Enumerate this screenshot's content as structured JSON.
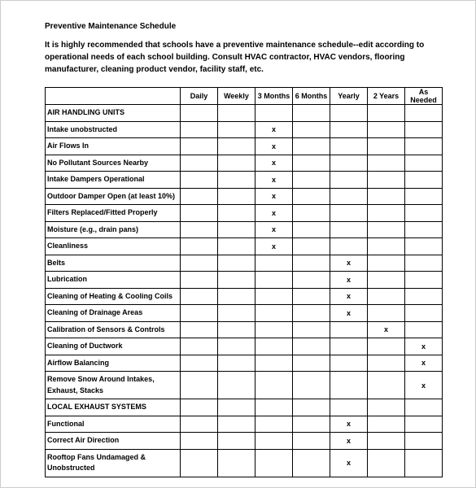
{
  "title": "Preventive Maintenance Schedule",
  "intro": "It is highly recommended that schools have a preventive maintenance schedule--edit according to operational needs of each school building. Consult HVAC contractor, HVAC vendors, flooring manufacturer, cleaning product vendor, facility staff, etc.",
  "columns": [
    "Daily",
    "Weekly",
    "3 Months",
    "6 Months",
    "Yearly",
    "2 Years",
    "As Needed"
  ],
  "mark_char": "x",
  "rows": [
    {
      "type": "section",
      "label": "AIR HANDLING UNITS"
    },
    {
      "type": "item",
      "label": "Intake unobstructed",
      "marks": [
        0,
        0,
        1,
        0,
        0,
        0,
        0
      ]
    },
    {
      "type": "item",
      "label": "Air Flows In",
      "marks": [
        0,
        0,
        1,
        0,
        0,
        0,
        0
      ]
    },
    {
      "type": "item",
      "label": "No Pollutant Sources Nearby",
      "marks": [
        0,
        0,
        1,
        0,
        0,
        0,
        0
      ]
    },
    {
      "type": "item",
      "label": "Intake Dampers Operational",
      "marks": [
        0,
        0,
        1,
        0,
        0,
        0,
        0
      ]
    },
    {
      "type": "item",
      "label": "Outdoor Damper Open (at least 10%)",
      "marks": [
        0,
        0,
        1,
        0,
        0,
        0,
        0
      ]
    },
    {
      "type": "item",
      "label": "Filters Replaced/Fitted Properly",
      "marks": [
        0,
        0,
        1,
        0,
        0,
        0,
        0
      ]
    },
    {
      "type": "item",
      "label": "Moisture (e.g., drain pans)",
      "marks": [
        0,
        0,
        1,
        0,
        0,
        0,
        0
      ]
    },
    {
      "type": "item",
      "label": "Cleanliness",
      "marks": [
        0,
        0,
        1,
        0,
        0,
        0,
        0
      ]
    },
    {
      "type": "item",
      "label": "Belts",
      "marks": [
        0,
        0,
        0,
        0,
        1,
        0,
        0
      ]
    },
    {
      "type": "item",
      "label": "Lubrication",
      "marks": [
        0,
        0,
        0,
        0,
        1,
        0,
        0
      ]
    },
    {
      "type": "item",
      "label": "Cleaning of Heating & Cooling Coils",
      "marks": [
        0,
        0,
        0,
        0,
        1,
        0,
        0
      ]
    },
    {
      "type": "item",
      "label": "Cleaning of Drainage Areas",
      "marks": [
        0,
        0,
        0,
        0,
        1,
        0,
        0
      ]
    },
    {
      "type": "item",
      "label": "Calibration of Sensors & Controls",
      "marks": [
        0,
        0,
        0,
        0,
        0,
        1,
        0
      ]
    },
    {
      "type": "item",
      "label": "Cleaning of Ductwork",
      "marks": [
        0,
        0,
        0,
        0,
        0,
        0,
        1
      ]
    },
    {
      "type": "item",
      "label": "Airflow Balancing",
      "marks": [
        0,
        0,
        0,
        0,
        0,
        0,
        1
      ]
    },
    {
      "type": "item",
      "label": "Remove Snow Around Intakes, Exhaust, Stacks",
      "marks": [
        0,
        0,
        0,
        0,
        0,
        0,
        1
      ],
      "tall": true
    },
    {
      "type": "section",
      "label": "LOCAL EXHAUST SYSTEMS"
    },
    {
      "type": "item",
      "label": "Functional",
      "marks": [
        0,
        0,
        0,
        0,
        1,
        0,
        0
      ]
    },
    {
      "type": "item",
      "label": "Correct Air Direction",
      "marks": [
        0,
        0,
        0,
        0,
        1,
        0,
        0
      ]
    },
    {
      "type": "item",
      "label": "Rooftop Fans Undamaged & Unobstructed",
      "marks": [
        0,
        0,
        0,
        0,
        1,
        0,
        0
      ],
      "tall": true
    }
  ],
  "style": {
    "border_color": "#000000",
    "page_border_color": "#cccccc",
    "background_color": "#ffffff",
    "text_color": "#000000",
    "title_fontsize": 10,
    "body_fontsize": 10,
    "table_fontsize": 9
  }
}
